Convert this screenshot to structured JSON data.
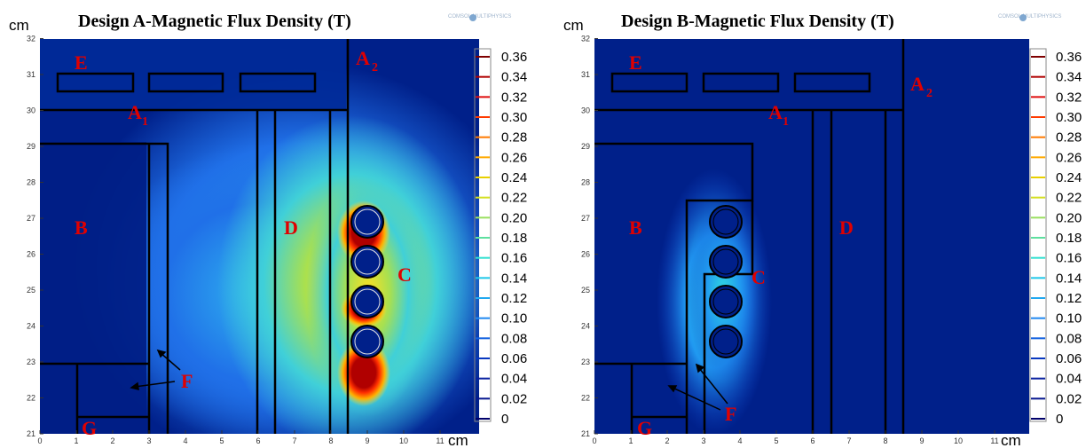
{
  "panels": [
    {
      "title": "Design A-Magnetic Flux Density (T)",
      "y_unit": "cm",
      "x_unit": "cm",
      "x_ticks": [
        "0",
        "1",
        "2",
        "3",
        "4",
        "5",
        "6",
        "7",
        "8",
        "9",
        "10",
        "11"
      ],
      "y_ticks": [
        "21",
        "22",
        "23",
        "24",
        "25",
        "26",
        "27",
        "28",
        "29",
        "30",
        "31",
        "32"
      ],
      "regions": {
        "E": "E",
        "A1": "A",
        "A1_sub": "1",
        "A2": "A",
        "A2_sub": "2",
        "B": "B",
        "C": "C",
        "D": "D",
        "F": "F",
        "G": "G"
      }
    },
    {
      "title": "Design B-Magnetic Flux Density (T)",
      "y_unit": "cm",
      "x_unit": "cm",
      "x_ticks": [
        "0",
        "1",
        "2",
        "3",
        "4",
        "5",
        "6",
        "7",
        "8",
        "9",
        "10",
        "11"
      ],
      "y_ticks": [
        "21",
        "22",
        "23",
        "24",
        "25",
        "26",
        "27",
        "28",
        "29",
        "30",
        "31",
        "32"
      ],
      "regions": {
        "E": "E",
        "A1": "A",
        "A1_sub": "1",
        "A2": "A",
        "A2_sub": "2",
        "B": "B",
        "C": "C",
        "D": "D",
        "F": "F",
        "G": "G"
      }
    }
  ],
  "colorbar": {
    "labels": [
      "0.36",
      "0.34",
      "0.32",
      "0.30",
      "0.28",
      "0.26",
      "0.24",
      "0.22",
      "0.20",
      "0.18",
      "0.16",
      "0.14",
      "0.12",
      "0.10",
      "0.08",
      "0.06",
      "0.04",
      "0.02",
      "0"
    ],
    "colors": [
      "#7f0000",
      "#b00000",
      "#e01010",
      "#ff3a00",
      "#ff7a00",
      "#ffaa00",
      "#e8d000",
      "#d4e020",
      "#9ae060",
      "#5ee0a0",
      "#30e0d0",
      "#20c8e8",
      "#20a8f0",
      "#2088f0",
      "#1060e0",
      "#0838c0",
      "#0820a0",
      "#081890",
      "#00006a"
    ]
  },
  "logo_text": "COMSOL MULTIPHYSICS",
  "colors": {
    "field_bg": "#00208a",
    "region_label": "#e00000"
  }
}
